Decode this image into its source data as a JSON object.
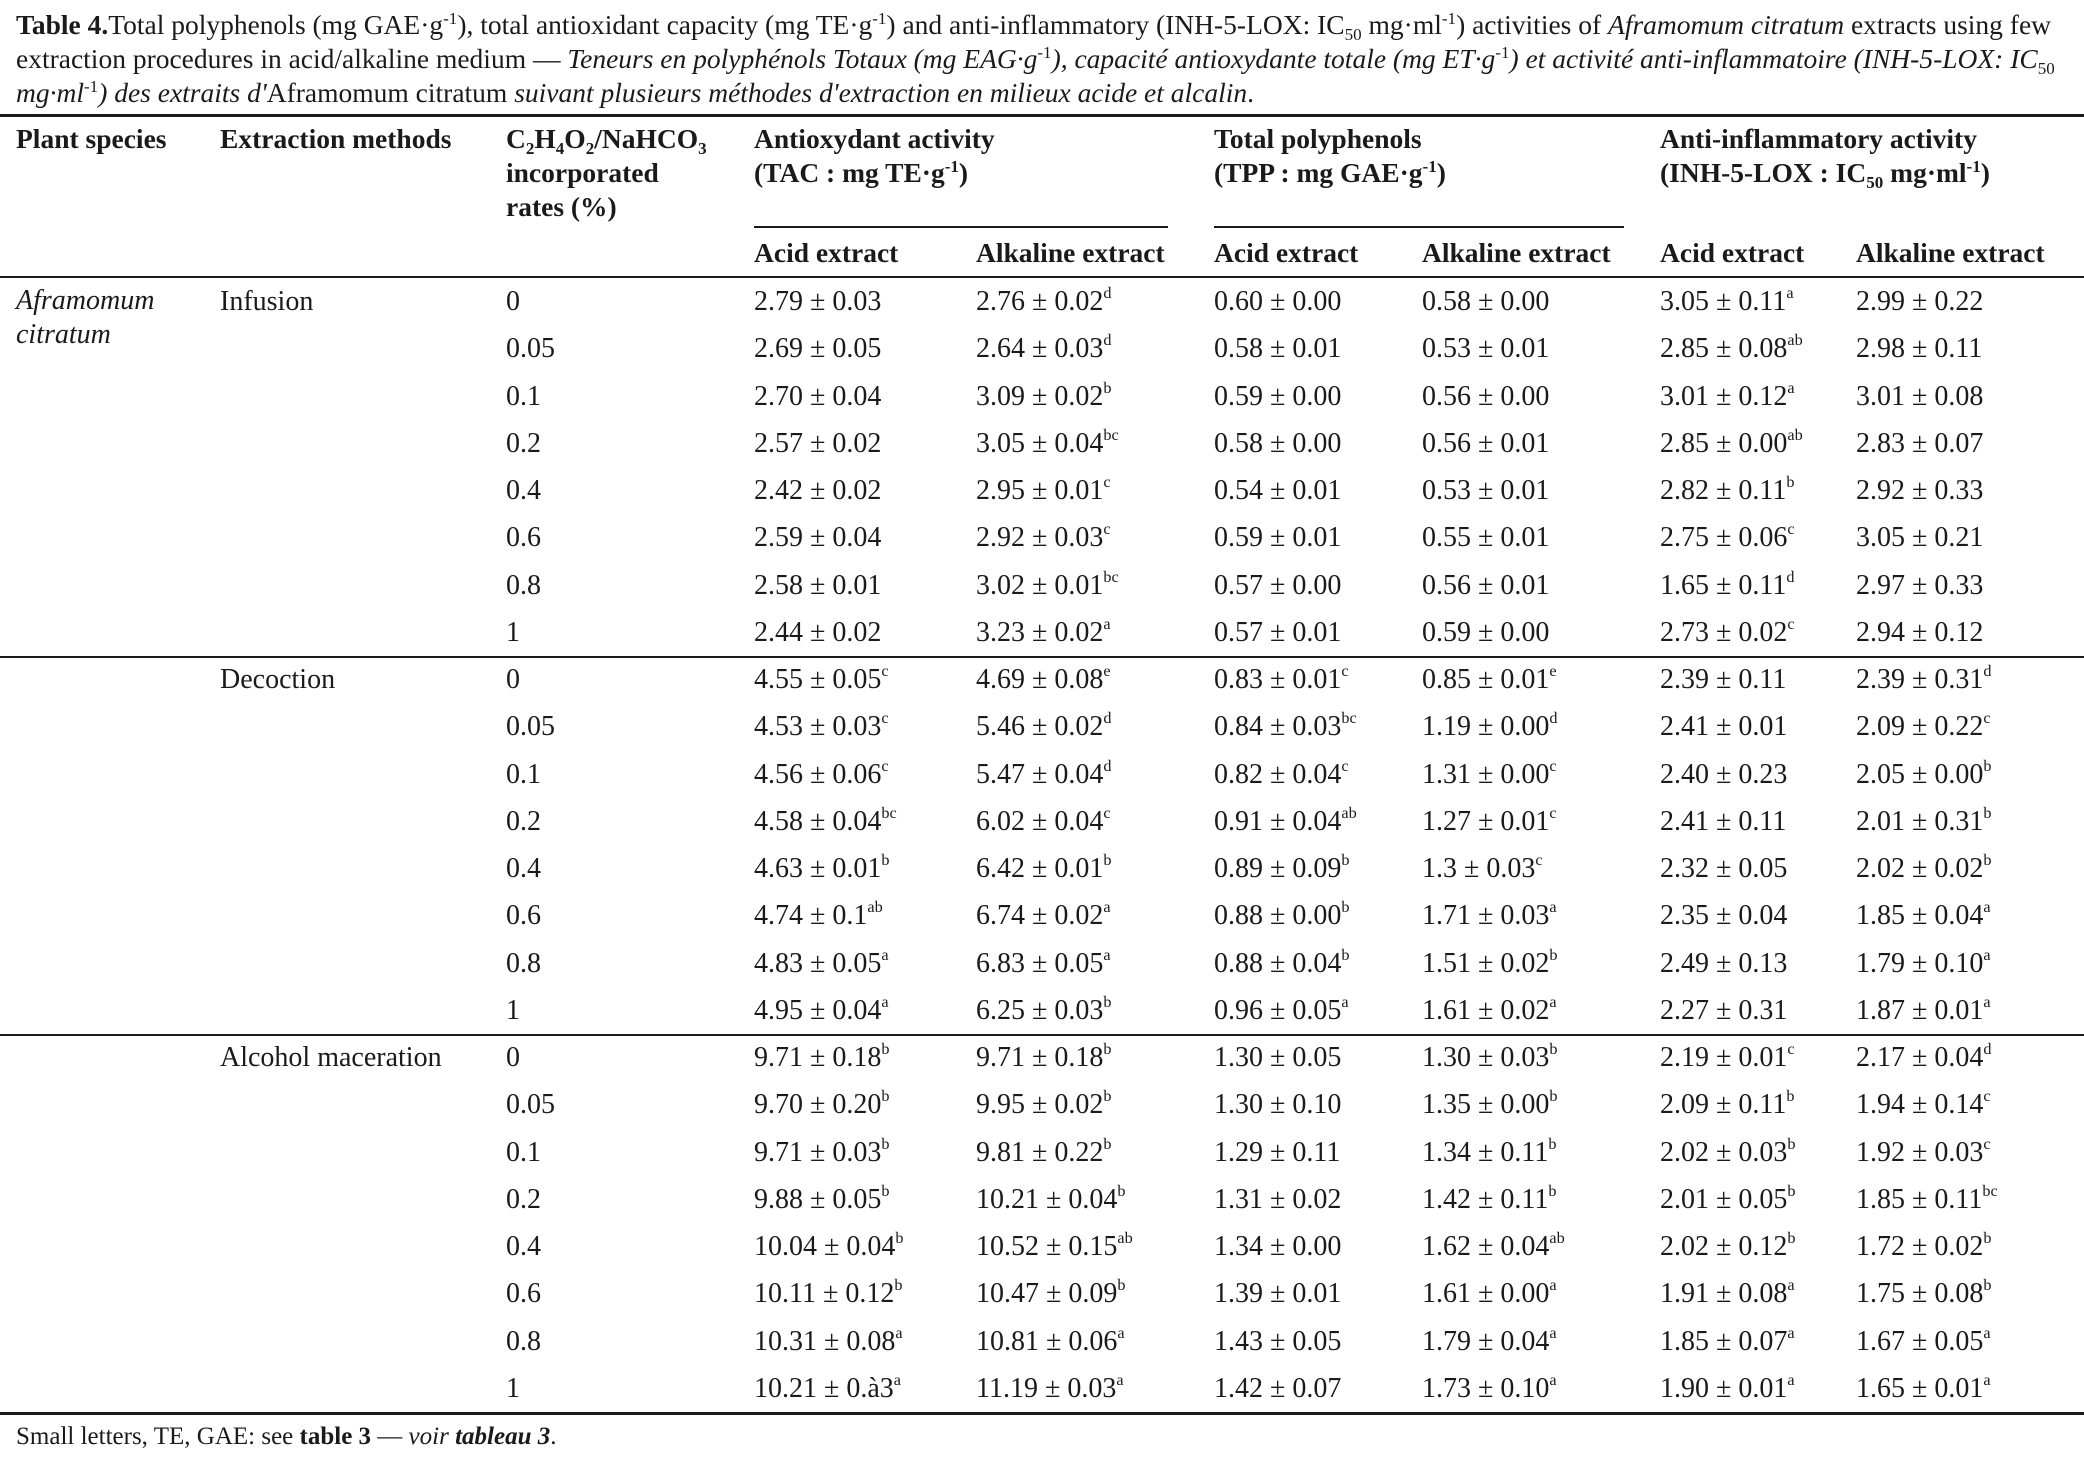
{
  "caption": {
    "label": "Table 4.",
    "seg1": "Total polyphenols (mg GAE·g",
    "seg1_sup": "-1",
    "seg2": "), total antioxidant capacity (mg TE·g",
    "seg2_sup": "-1",
    "seg3": ") and anti-inflammatory (INH-5-LOX: IC",
    "seg3_sub": "50",
    "seg4": " mg·ml",
    "seg4_sup": "-1",
    "seg5": ") activities of ",
    "seg5_it": "Aframomum citratum",
    "seg6": " extracts using few extraction procedures in acid/alkaline medium — ",
    "fr1": "Teneurs en polyphénols Totaux (mg EAG·g",
    "fr1_sup": "-1",
    "fr2": "), capacité antioxydante totale (mg ET·g",
    "fr2_sup": "-1",
    "fr3": ") et activité anti-inflammatoire (INH-5-LOX: IC",
    "fr3_sub": "50",
    "fr4": " mg·ml",
    "fr4_sup": "-1",
    "fr5": ") des extraits d'",
    "fr5_roman": "Aframomum citratum",
    "fr6": " suivant plusieurs méthodes d'extraction en milieux acide et alcalin",
    "end": "."
  },
  "headers": {
    "plant_species": "Plant  species",
    "extraction_methods": "Extraction methods",
    "rate_line1_a": "C",
    "rate_line1_sub1": "2",
    "rate_line1_b": "H",
    "rate_line1_sub2": "4",
    "rate_line1_c": "O",
    "rate_line1_sub3": "2",
    "rate_line1_d": "/NaHCO",
    "rate_line1_sub4": "3",
    "rate_line2": "incorporated",
    "rate_line3": "rates (%)",
    "tac_line1": "Antioxydant activity",
    "tac_line2_a": "(TAC : mg TE·g",
    "tac_line2_sup": "-1",
    "tac_line2_b": ")",
    "tpp_line1": "Total polyphenols",
    "tpp_line2_a": "(TPP : mg GAE·g",
    "tpp_line2_sup": "-1",
    "tpp_line2_b": ")",
    "inh_line1": "Anti-inflammatory activity",
    "inh_line2_a": "(INH-5-LOX : IC",
    "inh_line2_sub": "50",
    "inh_line2_b": " mg·ml",
    "inh_line2_sup": "-1",
    "inh_line2_c": ")",
    "acid": "Acid extract",
    "alkaline": "Alkaline extract"
  },
  "species": [
    "Aframomum",
    "citratum"
  ],
  "groups": [
    {
      "method": "Infusion",
      "rows": [
        [
          "0",
          "2.79 ± 0.03",
          "",
          "2.76 ± 0.02",
          "d",
          "0.60 ± 0.00",
          "",
          "0.58 ± 0.00",
          "",
          "3.05 ± 0.11",
          "a",
          "2.99 ± 0.22",
          ""
        ],
        [
          "0.05",
          "2.69 ± 0.05",
          "",
          "2.64 ± 0.03",
          "d",
          "0.58 ± 0.01",
          "",
          "0.53 ± 0.01",
          "",
          "2.85 ± 0.08",
          "ab",
          "2.98 ± 0.11",
          ""
        ],
        [
          "0.1",
          "2.70 ± 0.04",
          "",
          "3.09 ± 0.02",
          "b",
          "0.59 ± 0.00",
          "",
          "0.56 ± 0.00",
          "",
          "3.01 ± 0.12",
          "a",
          "3.01 ± 0.08",
          ""
        ],
        [
          "0.2",
          "2.57 ± 0.02",
          "",
          "3.05 ± 0.04",
          "bc",
          "0.58 ± 0.00",
          "",
          "0.56 ± 0.01",
          "",
          "2.85 ± 0.00",
          "ab",
          "2.83 ± 0.07",
          ""
        ],
        [
          "0.4",
          "2.42 ± 0.02",
          "",
          "2.95 ± 0.01",
          "c",
          "0.54 ± 0.01",
          "",
          "0.53 ± 0.01",
          "",
          "2.82 ± 0.11",
          "b",
          "2.92 ± 0.33",
          ""
        ],
        [
          "0.6",
          "2.59 ± 0.04",
          "",
          "2.92 ± 0.03",
          "c",
          "0.59 ± 0.01",
          "",
          "0.55 ± 0.01",
          "",
          "2.75 ± 0.06",
          "c",
          "3.05 ± 0.21",
          ""
        ],
        [
          "0.8",
          "2.58 ± 0.01",
          "",
          "3.02 ± 0.01",
          "bc",
          "0.57 ± 0.00",
          "",
          "0.56 ± 0.01",
          "",
          "1.65 ± 0.11",
          "d",
          "2.97 ± 0.33",
          ""
        ],
        [
          "1",
          "2.44 ± 0.02",
          "",
          "3.23 ± 0.02",
          "a",
          "0.57 ± 0.01",
          "",
          "0.59 ± 0.00",
          "",
          "2.73 ± 0.02",
          "c",
          "2.94 ± 0.12",
          ""
        ]
      ]
    },
    {
      "method": "Decoction",
      "rows": [
        [
          "0",
          "4.55 ± 0.05",
          "c",
          "4.69 ± 0.08",
          "e",
          "0.83 ± 0.01",
          "c",
          "0.85 ± 0.01",
          "e",
          "2.39 ± 0.11",
          "",
          "2.39 ± 0.31",
          "d"
        ],
        [
          "0.05",
          "4.53 ± 0.03",
          "c",
          "5.46 ± 0.02",
          "d",
          "0.84 ± 0.03",
          "bc",
          "1.19 ± 0.00",
          "d",
          "2.41 ± 0.01",
          "",
          "2.09 ± 0.22",
          "c"
        ],
        [
          "0.1",
          "4.56 ± 0.06",
          "c",
          "5.47 ± 0.04",
          "d",
          "0.82 ± 0.04",
          "c",
          "1.31 ± 0.00",
          "c",
          "2.40 ± 0.23",
          "",
          "2.05 ± 0.00",
          "b"
        ],
        [
          "0.2",
          "4.58 ± 0.04",
          "bc",
          "6.02 ± 0.04",
          "c",
          "0.91 ± 0.04",
          "ab",
          "1.27 ± 0.01",
          "c",
          "2.41 ± 0.11",
          "",
          "2.01 ± 0.31",
          "b"
        ],
        [
          "0.4",
          "4.63 ± 0.01",
          "b",
          "6.42 ± 0.01",
          "b",
          "0.89 ± 0.09",
          "b",
          "1.3 ± 0.03",
          "c",
          "2.32 ± 0.05",
          "",
          "2.02 ± 0.02",
          "b"
        ],
        [
          "0.6",
          "4.74 ± 0.1",
          "ab",
          "6.74 ± 0.02",
          "a",
          "0.88 ± 0.00",
          "b",
          "1.71 ± 0.03",
          "a",
          "2.35 ± 0.04",
          "",
          "1.85 ± 0.04",
          "a"
        ],
        [
          "0.8",
          "4.83 ± 0.05",
          "a",
          "6.83 ± 0.05",
          "a",
          "0.88 ± 0.04",
          "b",
          "1.51 ± 0.02",
          "b",
          "2.49 ± 0.13",
          "",
          "1.79 ± 0.10",
          "a"
        ],
        [
          "1",
          "4.95 ± 0.04",
          "a",
          "6.25 ± 0.03",
          "b",
          "0.96 ± 0.05",
          "a",
          "1.61 ± 0.02",
          "a",
          "2.27 ± 0.31",
          "",
          "1.87 ± 0.01",
          "a"
        ]
      ]
    },
    {
      "method": "Alcohol maceration",
      "rows": [
        [
          "0",
          "9.71 ± 0.18",
          "b",
          "9.71 ± 0.18",
          "b",
          "1.30 ± 0.05",
          "",
          "1.30 ± 0.03",
          "b",
          "2.19 ± 0.01",
          "c",
          "2.17 ± 0.04",
          "d"
        ],
        [
          "0.05",
          "9.70 ± 0.20",
          "b",
          "9.95 ± 0.02",
          "b",
          "1.30 ± 0.10",
          "",
          "1.35 ± 0.00",
          "b",
          "2.09 ± 0.11",
          "b",
          "1.94 ± 0.14",
          "c"
        ],
        [
          "0.1",
          "9.71 ± 0.03",
          "b",
          "9.81 ± 0.22",
          "b",
          "1.29 ± 0.11",
          "",
          "1.34 ± 0.11",
          "b",
          "2.02 ± 0.03",
          "b",
          "1.92 ± 0.03",
          "c"
        ],
        [
          "0.2",
          "9.88 ± 0.05",
          "b",
          "10.21 ± 0.04",
          "b",
          "1.31 ± 0.02",
          "",
          "1.42 ± 0.11",
          "b",
          "2.01 ± 0.05",
          "b",
          "1.85 ± 0.11",
          "bc"
        ],
        [
          "0.4",
          "10.04 ± 0.04",
          "b",
          "10.52 ± 0.15",
          "ab",
          "1.34 ± 0.00",
          "",
          "1.62 ± 0.04",
          "ab",
          "2.02 ± 0.12",
          "b",
          "1.72 ± 0.02",
          "b"
        ],
        [
          "0.6",
          "10.11 ± 0.12",
          "b",
          "10.47 ± 0.09",
          "b",
          "1.39 ± 0.01",
          "",
          "1.61 ± 0.00",
          "a",
          "1.91 ± 0.08",
          "a",
          "1.75 ± 0.08",
          "b"
        ],
        [
          "0.8",
          "10.31 ± 0.08",
          "a",
          "10.81 ± 0.06",
          "a",
          "1.43 ± 0.05",
          "",
          "1.79 ± 0.04",
          "a",
          "1.85 ± 0.07",
          "a",
          "1.67 ± 0.05",
          "a"
        ],
        [
          "1",
          "10.21 ± 0.à3",
          "a",
          "11.19 ± 0.03",
          "a",
          "1.42 ± 0.07",
          "",
          "1.73 ± 0.10",
          "a",
          "1.90 ± 0.01",
          "a",
          "1.65 ± 0.01",
          "a"
        ]
      ]
    }
  ],
  "footnote": {
    "a": "Small letters, TE, GAE: see ",
    "b": "table 3",
    "c": " — ",
    "d": "voir",
    "e": " ",
    "f": "tableau 3",
    "g": "."
  }
}
